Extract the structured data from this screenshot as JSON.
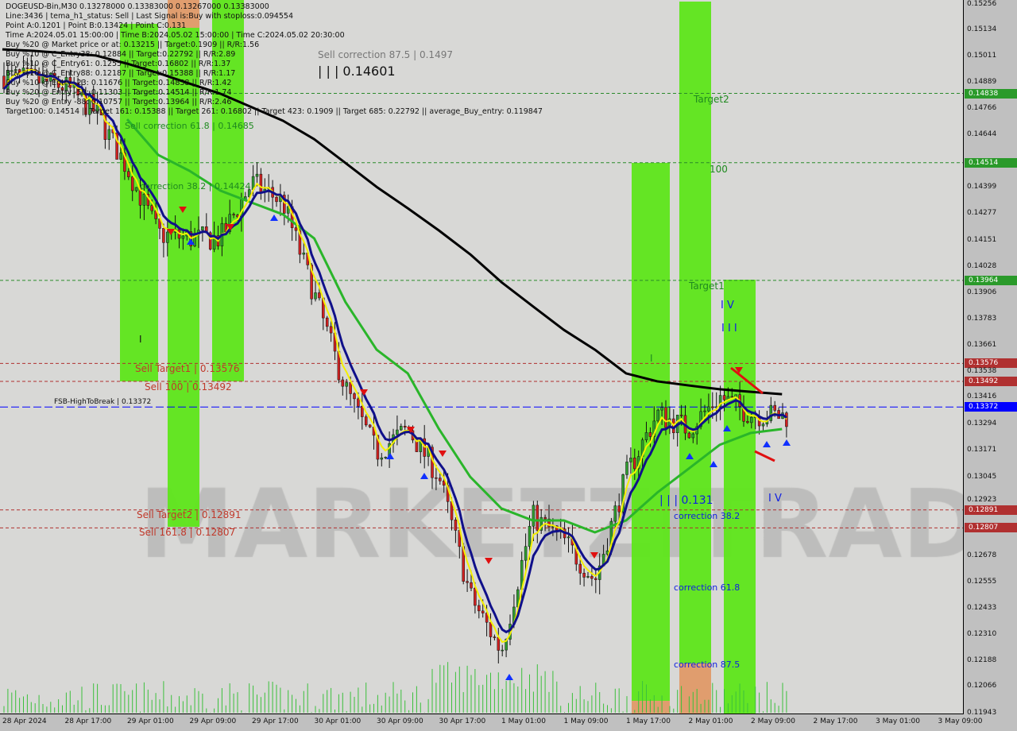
{
  "header": {
    "lines": [
      "DOGEUSD-Bin,M30  0.13278000 0.13383000 0.13267000 0.13383000",
      "Line:3436 | tema_h1_status: Sell | Last Signal is:Buy with stoploss:0.094554",
      "Point A:0.1201 | Point B:0.13424 | Point C:0.131",
      "Time A:2024.05.01 15:00:00 | Time B:2024.05.02 15:00:00 | Time C:2024.05.02 20:30:00",
      "Buy %20 @ Market price or at: 0.13215 || Target:0.1909 || R/R:1.56",
      "Buy %10 @ C_Entry38: 0.12884 || Target:0.22792 || R/R:2.89",
      "Buy %10 @ C_Entry61: 0.1255 || Target:0.16802 || R/R:1.37",
      "Buy %10 @ C_Entry88: 0.12187 || Target:0.15388 || R/R:1.17",
      "Buy %10 @ Entry -23: 0.11676 || Target:0.14838 || R/R:1.42",
      "Buy %20 @ Entry -50: 0.11303 || Target:0.14514 || R/R:1.74",
      "Buy %20 @ Entry -88: 0.10757 || Target:0.13964 || R/R:2.46",
      "Target100: 0.14514 || Target 161: 0.15388 || Target 261: 0.16802 || Target 423: 0.1909 || Target 685: 0.22792 || average_Buy_entry: 0.119847"
    ]
  },
  "watermark": "MARKETZITRADE",
  "annotations": {
    "sell_corr_875": "Sell correction 87.5 | 0.1497",
    "big_level": "| | | 0.14601",
    "sell_corr_618": "Sell correction 61.8 | 0.14685",
    "sell_corr_382": "correction 38.2 | 0.14424",
    "sell_target1": "Sell Target1 | 0.13576",
    "sell_100": "Sell 100 | 0.13492",
    "fsb": "FSB-HighToBreak | 0.13372",
    "sell_target2": "Sell Target2 | 0.12891",
    "sell_1618": "Sell 161.8 | 0.12807",
    "target2": "Target2",
    "t100": "100",
    "target1": "Target1",
    "point_c": "| | | 0.131",
    "corr_382": "correction 38.2",
    "corr_618": "correction 61.8",
    "corr_875": "correction 87.5",
    "wave_iv": "I V",
    "wave_iii": "I I I",
    "wave_iv2": "I V",
    "wave_i1": "I",
    "wave_i2": "I"
  },
  "colors": {
    "bg": "#d8d8d6",
    "green_zone": "#5ee61a",
    "orange_zone": "#e09a68",
    "ma200": "#000000",
    "ma_green": "#2ab52a",
    "ma_yellow": "#f5f000",
    "ma_blue": "#10108a",
    "level_red": "#b03030",
    "level_green": "#2a8a2a",
    "level_blue": "#0000ff"
  },
  "chart_data": {
    "type": "candlestick",
    "symbol": "DOGEUSD-Bin",
    "timeframe": "M30",
    "ylim": [
      0.11943,
      0.15256
    ],
    "y_ticks": [
      "0.15256",
      "0.15134",
      "0.15011",
      "0.14889",
      "0.14766",
      "0.14644",
      "0.14399",
      "0.14277",
      "0.14151",
      "0.14028",
      "0.13906",
      "0.13783",
      "0.13661",
      "0.13538",
      "0.13416",
      "0.13294",
      "0.13171",
      "0.13045",
      "0.12923",
      "0.12678",
      "0.12555",
      "0.12433",
      "0.12310",
      "0.12188",
      "0.12066",
      "0.11943"
    ],
    "x_ticks": [
      "28 Apr 2024",
      "28 Apr 17:00",
      "29 Apr 01:00",
      "29 Apr 09:00",
      "29 Apr 17:00",
      "30 Apr 01:00",
      "30 Apr 09:00",
      "30 Apr 17:00",
      "1 May 01:00",
      "1 May 09:00",
      "1 May 17:00",
      "2 May 01:00",
      "2 May 09:00",
      "2 May 17:00",
      "3 May 01:00",
      "3 May 09:00"
    ],
    "times": [
      "28 Apr 09:00",
      "28 Apr 13:00",
      "28 Apr 17:00",
      "28 Apr 21:00",
      "29 Apr 01:00",
      "29 Apr 05:00",
      "29 Apr 09:00",
      "29 Apr 13:00",
      "29 Apr 17:00",
      "29 Apr 21:00",
      "30 Apr 01:00",
      "30 Apr 05:00",
      "30 Apr 09:00",
      "30 Apr 13:00",
      "30 Apr 17:00",
      "30 Apr 21:00",
      "1 May 01:00",
      "1 May 05:00",
      "1 May 09:00",
      "1 May 13:00",
      "1 May 17:00",
      "1 May 21:00",
      "2 May 01:00",
      "2 May 05:00",
      "2 May 09:00",
      "2 May 13:00"
    ],
    "close": [
      0.1492,
      0.149,
      0.1487,
      0.1475,
      0.1449,
      0.1418,
      0.1416,
      0.1416,
      0.1442,
      0.1433,
      0.139,
      0.1346,
      0.1316,
      0.1327,
      0.1305,
      0.1249,
      0.1223,
      0.1286,
      0.1275,
      0.1256,
      0.1305,
      0.1334,
      0.1327,
      0.1342,
      0.1334,
      0.1333
    ],
    "series": [
      {
        "key": "ma_black",
        "values": [
          0.15044,
          0.15037,
          0.15026,
          0.15015,
          0.14977,
          0.14933,
          0.14884,
          0.14836,
          0.14773,
          0.1471,
          0.14624,
          0.14513,
          0.14401,
          0.14301,
          0.14197,
          0.14086,
          0.13956,
          0.13844,
          0.13733,
          0.1364,
          0.13529,
          0.13492,
          0.13473,
          0.13455,
          0.13443,
          0.13432
        ]
      },
      {
        "key": "ma_green",
        "values": [
          null,
          null,
          null,
          null,
          0.14717,
          0.1455,
          0.14476,
          0.14383,
          0.14327,
          0.14272,
          0.1416,
          0.13863,
          0.1364,
          0.13529,
          0.13269,
          0.13046,
          0.12898,
          0.12842,
          0.12842,
          0.12786,
          0.12842,
          0.12972,
          0.13083,
          0.13195,
          0.13251,
          0.13269
        ]
      }
    ],
    "levels": [
      {
        "price": 0.14838,
        "tag": "0.14838",
        "kind": "green"
      },
      {
        "price": 0.14514,
        "tag": "0.14514",
        "kind": "green"
      },
      {
        "price": 0.13964,
        "tag": "0.13964",
        "kind": "green"
      },
      {
        "price": 0.13576,
        "tag": "0.13576",
        "kind": "red"
      },
      {
        "price": 0.13492,
        "tag": "0.13492",
        "kind": "red"
      },
      {
        "price": 0.13372,
        "tag": "0.13372",
        "kind": "blue"
      },
      {
        "price": 0.12891,
        "tag": "0.12891",
        "kind": "red"
      },
      {
        "price": 0.12807,
        "tag": "0.12807",
        "kind": "red"
      }
    ]
  }
}
